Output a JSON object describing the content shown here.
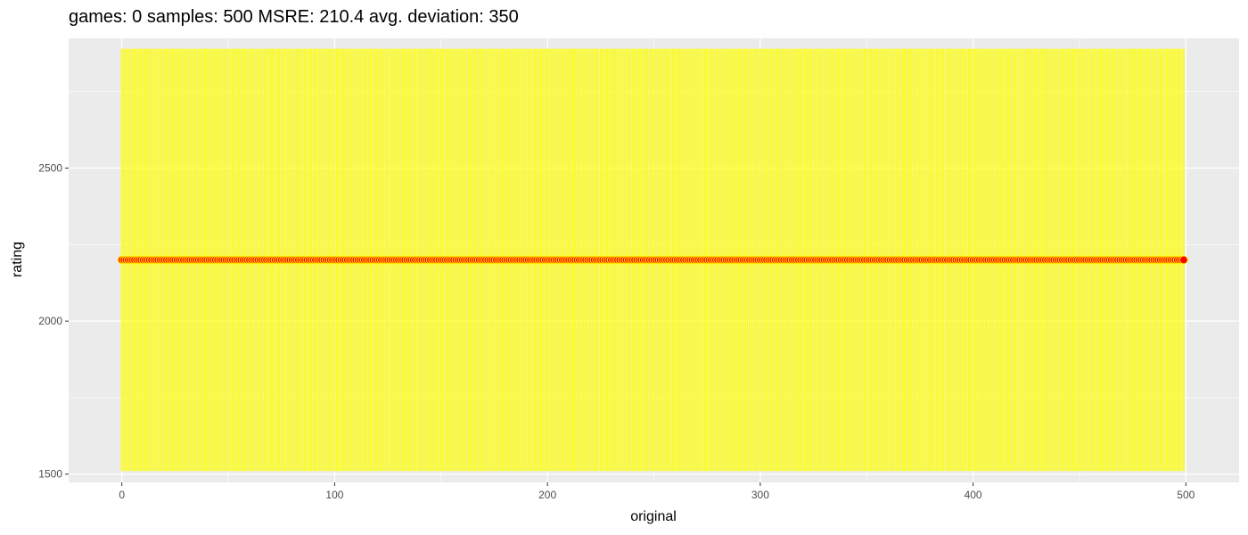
{
  "chart_data": {
    "type": "line",
    "title": "games: 0 samples: 500 MSRE: 210.4 avg. deviation: 350",
    "xlabel": "original",
    "ylabel": "rating",
    "xlim": [
      -25,
      525
    ],
    "ylim": [
      1473,
      2924
    ],
    "x_ticks": [
      0,
      100,
      200,
      300,
      400,
      500
    ],
    "y_ticks": [
      1500,
      2000,
      2500
    ],
    "grid": true,
    "legend": "none",
    "n_samples": 500,
    "series": [
      {
        "type": "errorbar",
        "color": "#ffff00",
        "x_start": 0,
        "x_end": 499,
        "lower": 1510,
        "upper": 2890
      },
      {
        "type": "points",
        "color": "#ff0000",
        "outline": "#ffff00",
        "x_start": 0,
        "x_end": 499,
        "y": 2200
      }
    ],
    "colors": {
      "panel": "#ebebeb",
      "grid_major": "#ffffff",
      "error_bar": "#ffff00",
      "point": "#ff0000"
    }
  }
}
